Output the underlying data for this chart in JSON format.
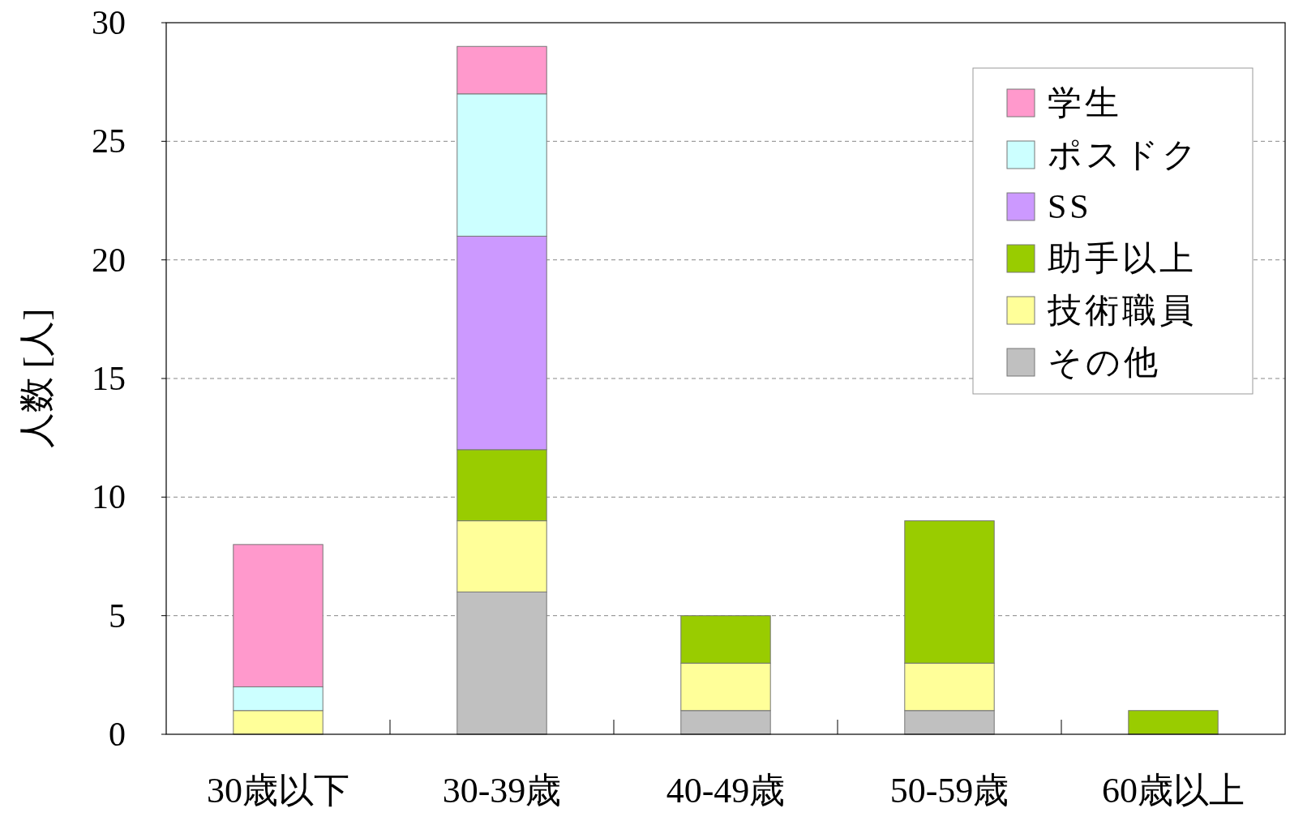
{
  "chart_data": {
    "type": "bar",
    "stacked": true,
    "ylabel": "人数 [人]",
    "categories": [
      "30歳以下",
      "30-39歳",
      "40-49歳",
      "50-59歳",
      "60歳以上"
    ],
    "series": [
      {
        "name": "その他",
        "color": "#c0c0c0",
        "values": [
          0,
          6,
          1,
          1,
          0
        ]
      },
      {
        "name": "技術職員",
        "color": "#ffff99",
        "values": [
          1,
          3,
          2,
          2,
          0
        ]
      },
      {
        "name": "助手以上",
        "color": "#99cc00",
        "values": [
          0,
          3,
          2,
          6,
          1
        ]
      },
      {
        "name": "SS",
        "color": "#cc99ff",
        "values": [
          0,
          9,
          0,
          0,
          0
        ]
      },
      {
        "name": "ポスドク",
        "color": "#ccffff",
        "values": [
          1,
          6,
          0,
          0,
          0
        ]
      },
      {
        "name": "学生",
        "color": "#ff99cc",
        "values": [
          6,
          2,
          0,
          0,
          0
        ]
      }
    ],
    "ylim": [
      0,
      30
    ],
    "yticks": [
      0,
      5,
      10,
      15,
      20,
      25,
      30
    ],
    "grid": "y",
    "legend": "top right"
  }
}
